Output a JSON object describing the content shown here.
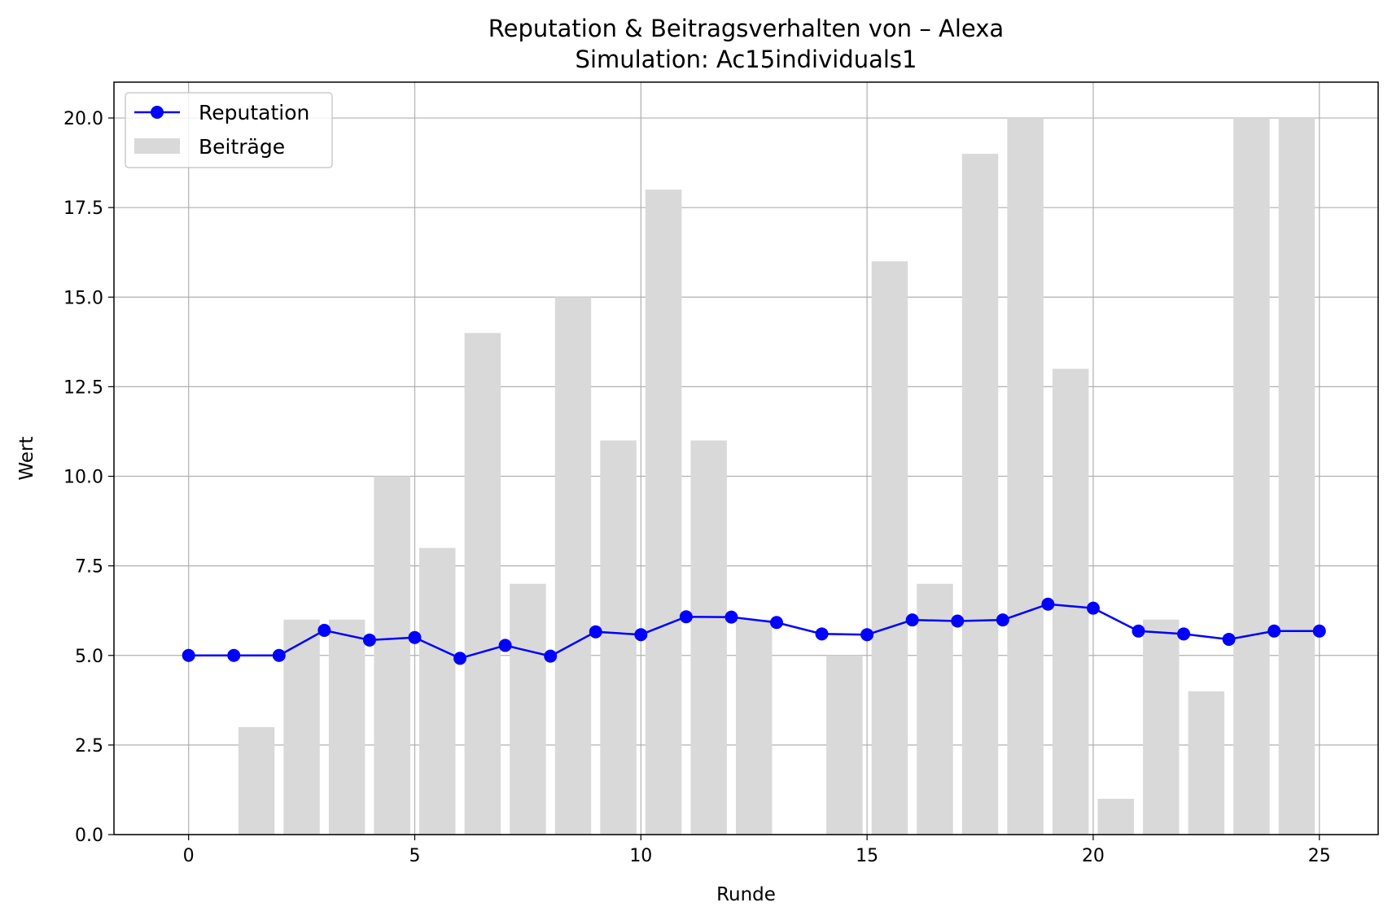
{
  "chart_data": {
    "type": "bar",
    "title": "Reputation & Beitragsverhalten von – Alexa",
    "subtitle": "Simulation: Ac15individuals1",
    "xlabel": "Runde",
    "ylabel": "Wert",
    "xlim": [
      -1.65,
      26.3
    ],
    "ylim": [
      0,
      21
    ],
    "xticks": [
      0,
      5,
      10,
      15,
      20,
      25
    ],
    "yticks": [
      0,
      2.5,
      5,
      7.5,
      10,
      12.5,
      15,
      17.5,
      20
    ],
    "xtick_labels": [
      "0",
      "5",
      "10",
      "15",
      "20",
      "25"
    ],
    "ytick_labels": [
      "0.0",
      "2.5",
      "5.0",
      "7.5",
      "10.0",
      "12.5",
      "15.0",
      "17.5",
      "20.0"
    ],
    "grid": true,
    "legend_position": "top-left",
    "colors": {
      "line": "#0000ff",
      "bars": "#d9d9d9",
      "grid": "#b0b0b0"
    },
    "x": [
      0,
      1,
      2,
      3,
      4,
      5,
      6,
      7,
      8,
      9,
      10,
      11,
      12,
      13,
      14,
      15,
      16,
      17,
      18,
      19,
      20,
      21,
      22,
      23,
      24,
      25
    ],
    "series": [
      {
        "name": "Reputation",
        "type": "line",
        "values": [
          5.0,
          5.0,
          5.0,
          5.7,
          5.43,
          5.5,
          4.92,
          5.28,
          4.98,
          5.66,
          5.58,
          6.08,
          6.07,
          5.92,
          5.6,
          5.58,
          5.99,
          5.96,
          5.99,
          6.43,
          6.32,
          5.68,
          5.6,
          5.45,
          5.68,
          5.68
        ]
      },
      {
        "name": "Beiträge",
        "type": "bar",
        "values": [
          0,
          3,
          6,
          6,
          10,
          8,
          14,
          7,
          15,
          11,
          18,
          11,
          6,
          0,
          5,
          16,
          7,
          19,
          20,
          13,
          1,
          6,
          4,
          20,
          20,
          0
        ]
      }
    ]
  }
}
